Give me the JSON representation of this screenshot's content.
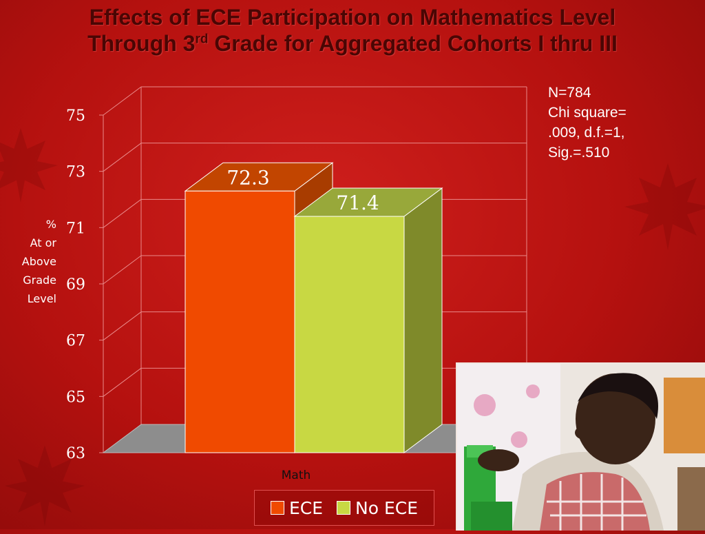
{
  "title": {
    "line1": "Effects of ECE Participation on Mathematics Level",
    "line2_pre": "Through 3",
    "line2_sup": "rd",
    "line2_post": " Grade for Aggregated Cohorts I thru III"
  },
  "stats": {
    "line1": "N=784",
    "line2": "Chi square=",
    "line3": ".009, d.f.=1,",
    "line4": "Sig.=.510"
  },
  "colors": {
    "ece": "#f04a00",
    "no_ece": "#c8d843",
    "background": "#b5110f"
  },
  "chart_data": {
    "type": "bar",
    "categories": [
      "Math"
    ],
    "series": [
      {
        "name": "ECE",
        "values": [
          72.3
        ]
      },
      {
        "name": "No ECE",
        "values": [
          71.4
        ]
      }
    ],
    "xlabel": "",
    "ylabel_lines": [
      "%",
      "At or",
      "Above",
      "Grade",
      "Level"
    ],
    "ylim": [
      63,
      75
    ],
    "yticks": [
      "75",
      "73",
      "71",
      "69",
      "67",
      "65",
      "63"
    ],
    "data_labels": [
      "72.3",
      "71.4"
    ],
    "grid": true,
    "legend_position": "bottom"
  }
}
